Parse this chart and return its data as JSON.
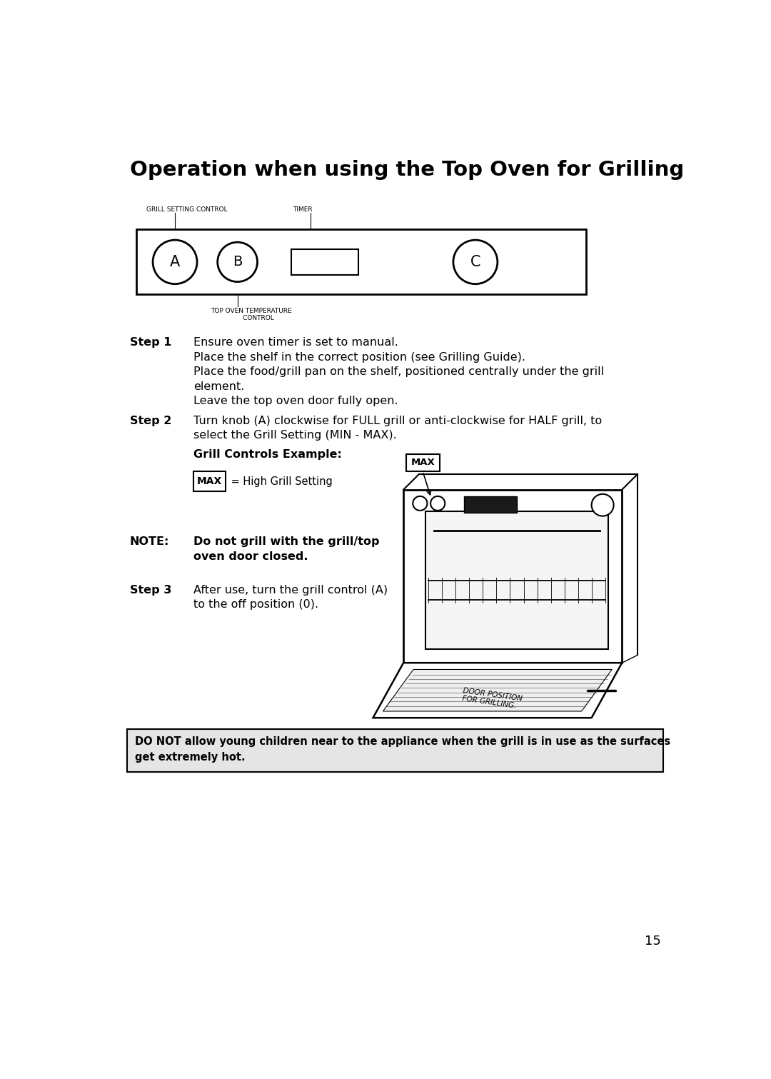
{
  "title": "Operation when using the Top Oven for Grilling",
  "background_color": "#ffffff",
  "page_number": "15",
  "panel_label_left": "GRILL SETTING CONTROL",
  "panel_label_center": "TIMER",
  "panel_label_bottom": "TOP OVEN TEMPERATURE\n       CONTROL",
  "knob_A": "A",
  "knob_B": "B",
  "knob_C": "C",
  "step1_label": "Step 1",
  "step1_text_line1": "Ensure oven timer is set to manual.",
  "step1_text_line2": "Place the shelf in the correct position (see Grilling Guide).",
  "step1_text_line3": "Place the food/grill pan on the shelf, positioned centrally under the grill",
  "step1_text_line4": "element.",
  "step1_text_line5": "Leave the top oven door fully open.",
  "step2_label": "Step 2",
  "step2_text_line1": "Turn knob (A) clockwise for FULL grill or anti-clockwise for HALF grill, to",
  "step2_text_line2": "select the Grill Setting (MIN - MAX).",
  "grill_controls_heading": "Grill Controls Example:",
  "max_label": "MAX",
  "max_description": " = High Grill Setting",
  "note_label": "NOTE:",
  "note_text_line1": "Do not grill with the grill/top",
  "note_text_line2": "oven door closed.",
  "step3_label": "Step 3",
  "step3_text_line1": "After use, turn the grill control (A)",
  "step3_text_line2": "to the off position (0).",
  "door_position_text": "DOOR POSITION\nFOR GRILLING.",
  "warning_text": "DO NOT allow young children near to the appliance when the grill is in use as the surfaces\nget extremely hot."
}
